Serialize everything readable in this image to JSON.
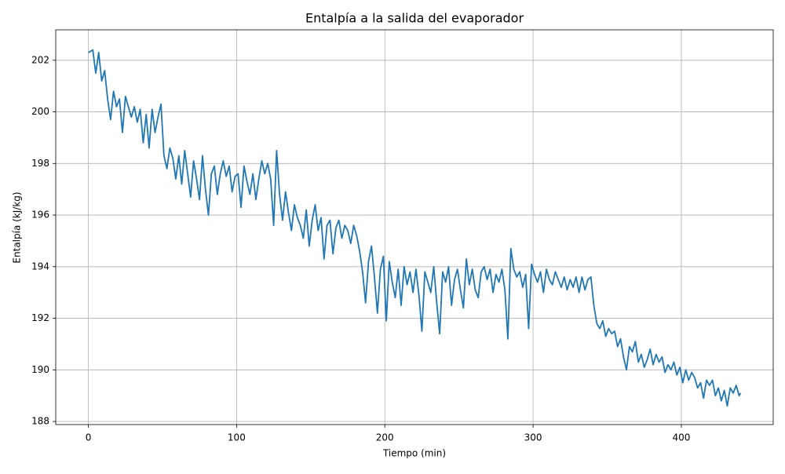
{
  "chart_data": {
    "type": "line",
    "title": "Entalpía a la salida del evaporador",
    "xlabel": "Tiempo (min)",
    "ylabel": "Entalpía (kJ/kg)",
    "xlim": [
      -22,
      462
    ],
    "ylim": [
      187.88,
      203.18
    ],
    "xticks": [
      0,
      100,
      200,
      300,
      400
    ],
    "yticks": [
      188,
      190,
      192,
      194,
      196,
      198,
      200,
      202
    ],
    "grid": true,
    "x": [
      0,
      3,
      5,
      7,
      9,
      11,
      13,
      15,
      17,
      19,
      21,
      23,
      25,
      27,
      29,
      31,
      33,
      35,
      37,
      39,
      41,
      43,
      45,
      47,
      49,
      51,
      53,
      55,
      57,
      59,
      61,
      63,
      65,
      67,
      69,
      71,
      73,
      75,
      77,
      79,
      81,
      83,
      85,
      87,
      89,
      91,
      93,
      95,
      97,
      99,
      101,
      103,
      105,
      107,
      109,
      111,
      113,
      115,
      117,
      119,
      121,
      123,
      125,
      127,
      129,
      131,
      133,
      135,
      137,
      139,
      141,
      143,
      145,
      147,
      149,
      151,
      153,
      155,
      157,
      159,
      161,
      163,
      165,
      167,
      169,
      171,
      173,
      175,
      177,
      179,
      181,
      183,
      185,
      187,
      189,
      191,
      193,
      195,
      197,
      199,
      201,
      203,
      205,
      207,
      209,
      211,
      213,
      215,
      217,
      219,
      221,
      223,
      225,
      227,
      229,
      231,
      233,
      235,
      237,
      239,
      241,
      243,
      245,
      247,
      249,
      251,
      253,
      255,
      257,
      259,
      261,
      263,
      265,
      267,
      269,
      271,
      273,
      275,
      277,
      279,
      281,
      283,
      285,
      287,
      289,
      291,
      293,
      295,
      297,
      299,
      301,
      303,
      305,
      307,
      309,
      311,
      313,
      315,
      317,
      319,
      321,
      323,
      325,
      327,
      329,
      331,
      333,
      335,
      337,
      339,
      341,
      343,
      345,
      347,
      349,
      351,
      353,
      355,
      357,
      359,
      361,
      363,
      365,
      367,
      369,
      371,
      373,
      375,
      377,
      379,
      381,
      383,
      385,
      387,
      389,
      391,
      393,
      395,
      397,
      399,
      401,
      403,
      405,
      407,
      409,
      411,
      413,
      415,
      417,
      419,
      421,
      423,
      425,
      427,
      429,
      431,
      433,
      435,
      437,
      439,
      440
    ],
    "series": [
      {
        "color": "#1f77b4",
        "values": [
          202.3,
          202.4,
          201.5,
          202.3,
          201.2,
          201.6,
          200.5,
          199.7,
          200.8,
          200.2,
          200.5,
          199.2,
          200.6,
          200.2,
          199.8,
          200.2,
          199.6,
          200.1,
          198.8,
          199.9,
          198.6,
          200.1,
          199.2,
          199.8,
          200.3,
          198.3,
          197.8,
          198.6,
          198.2,
          197.4,
          198.3,
          197.2,
          198.5,
          197.6,
          196.7,
          198.1,
          197.4,
          196.6,
          198.3,
          197.0,
          196.0,
          197.6,
          197.9,
          196.8,
          197.6,
          198.1,
          197.5,
          197.9,
          196.9,
          197.5,
          197.6,
          196.3,
          197.9,
          197.3,
          196.8,
          197.6,
          196.6,
          197.4,
          198.1,
          197.6,
          198.0,
          197.4,
          195.6,
          198.5,
          196.8,
          195.8,
          196.9,
          196.1,
          195.4,
          196.4,
          195.9,
          195.6,
          195.1,
          196.2,
          194.8,
          195.8,
          196.4,
          195.4,
          195.9,
          194.3,
          195.6,
          195.8,
          194.5,
          195.5,
          195.8,
          195.1,
          195.6,
          195.4,
          194.9,
          195.6,
          195.2,
          194.6,
          193.8,
          192.6,
          194.2,
          194.8,
          193.6,
          192.2,
          193.9,
          194.4,
          191.9,
          194.2,
          193.4,
          192.8,
          193.9,
          192.5,
          194.0,
          193.3,
          193.8,
          193.0,
          193.9,
          192.9,
          191.5,
          193.8,
          193.4,
          193.0,
          194.0,
          192.6,
          191.4,
          193.8,
          193.4,
          194.0,
          192.5,
          193.5,
          193.9,
          193.1,
          192.4,
          194.3,
          193.3,
          193.9,
          193.1,
          192.8,
          193.8,
          194.0,
          193.5,
          193.9,
          193.0,
          193.7,
          193.4,
          193.9,
          193.1,
          191.2,
          194.7,
          193.9,
          193.6,
          193.8,
          193.2,
          193.7,
          191.6,
          194.1,
          193.7,
          193.4,
          193.8,
          193.0,
          193.9,
          193.5,
          193.3,
          193.8,
          193.5,
          193.2,
          193.6,
          193.1,
          193.5,
          193.2,
          193.6,
          193.0,
          193.6,
          193.1,
          193.5,
          193.6,
          192.5,
          191.8,
          191.6,
          191.9,
          191.3,
          191.6,
          191.4,
          191.5,
          190.9,
          191.2,
          190.5,
          190.0,
          190.9,
          190.7,
          191.1,
          190.3,
          190.6,
          190.1,
          190.4,
          190.8,
          190.2,
          190.6,
          190.3,
          190.5,
          189.9,
          190.2,
          190.0,
          190.3,
          189.8,
          190.1,
          189.5,
          190.0,
          189.6,
          189.9,
          189.7,
          189.3,
          189.5,
          188.9,
          189.6,
          189.4,
          189.6,
          189.0,
          189.3,
          188.8,
          189.2,
          188.6,
          189.3,
          189.1,
          189.4,
          189.0,
          189.1
        ]
      }
    ]
  }
}
